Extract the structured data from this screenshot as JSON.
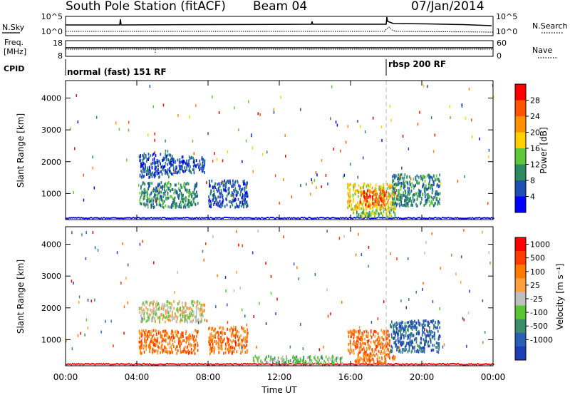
{
  "header": {
    "title": "South Pole Station (fitACF)",
    "beam": "Beam 04",
    "date": "07/Jan/2014"
  },
  "top_panels": {
    "nsky_label": "N.Sky",
    "nsky_ticks": [
      "10^5",
      "10^0"
    ],
    "nsearch_label": "N.Search",
    "nsearch_ticks": [
      "10^5",
      "10^0"
    ],
    "freq_label": "Freq.",
    "freq_unit": "[MHz]",
    "freq_ticks": [
      "18",
      "8"
    ],
    "nave_label": "Nave",
    "nave_ticks": [
      "60",
      "0"
    ],
    "cpid_label": "CPID",
    "cpid_modes": [
      {
        "name": "normal (fast) 151 RF",
        "start": "00:00"
      },
      {
        "name": "rbsp 200 RF",
        "start": "18:00"
      }
    ]
  },
  "chart_data": [
    {
      "type": "heatmap",
      "title": "",
      "xlabel": "",
      "ylabel": "Slant Range [km]",
      "xlim": [
        "00:00",
        "24:00"
      ],
      "ylim": [
        180,
        4550
      ],
      "x_ticks": [
        "00:00",
        "04:00",
        "08:00",
        "12:00",
        "16:00",
        "20:00",
        "00:00"
      ],
      "y_ticks": [
        1000,
        2000,
        3000,
        4000
      ],
      "colorbar": {
        "label": "Power [dB]",
        "ticks": [
          4,
          8,
          12,
          16,
          20,
          24,
          28
        ],
        "colors": [
          "#0000ff",
          "#1f4fb4",
          "#2c8a63",
          "#5fc73a",
          "#ffd000",
          "#ff9000",
          "#ff5500",
          "#ff0000"
        ]
      },
      "regions": [
        {
          "t0": 4.1,
          "t1": 6.0,
          "r0": 1500,
          "r1": 2250,
          "level": 1
        },
        {
          "t0": 6.0,
          "t1": 7.8,
          "r0": 1650,
          "r1": 2150,
          "level": 1
        },
        {
          "t0": 4.1,
          "t1": 7.4,
          "r0": 560,
          "r1": 1350,
          "level": 2
        },
        {
          "t0": 8.0,
          "t1": 10.2,
          "r0": 560,
          "r1": 1400,
          "level": 1
        },
        {
          "t0": 15.8,
          "t1": 18.5,
          "r0": 500,
          "r1": 1300,
          "level": 4
        },
        {
          "t0": 16.5,
          "t1": 18.0,
          "r0": 600,
          "r1": 1100,
          "level": 6
        },
        {
          "t0": 18.3,
          "t1": 21.0,
          "r0": 600,
          "r1": 1600,
          "level": 2
        },
        {
          "t0": 16.0,
          "t1": 18.5,
          "r0": 250,
          "r1": 520,
          "level": 3
        }
      ]
    },
    {
      "type": "heatmap",
      "title": "",
      "xlabel": "Time UT",
      "ylabel": "Slant Range [km]",
      "xlim": [
        "00:00",
        "24:00"
      ],
      "ylim": [
        180,
        4550
      ],
      "x_ticks": [
        "00:00",
        "04:00",
        "08:00",
        "12:00",
        "16:00",
        "20:00",
        "00:00"
      ],
      "y_ticks": [
        1000,
        2000,
        3000,
        4000
      ],
      "colorbar": {
        "label": "Velocity [m s⁻¹]",
        "ticks": [
          "1000",
          "500",
          "100",
          "25",
          "-25",
          "-100",
          "-500",
          "-1000"
        ],
        "colors": [
          "#1f3db4",
          "#2a5fb8",
          "#3a8f6a",
          "#59c533",
          "#bfbfbf",
          "#ffa040",
          "#ff7a00",
          "#ff3b00",
          "#ff0000"
        ]
      },
      "regions": [
        {
          "t0": 4.1,
          "t1": 7.8,
          "r0": 1550,
          "r1": 2200,
          "level": 4
        },
        {
          "t0": 4.1,
          "t1": 7.4,
          "r0": 560,
          "r1": 1300,
          "level": 6
        },
        {
          "t0": 8.0,
          "t1": 10.2,
          "r0": 560,
          "r1": 1400,
          "level": 6
        },
        {
          "t0": 15.8,
          "t1": 18.2,
          "r0": 500,
          "r1": 1300,
          "level": 6
        },
        {
          "t0": 16.2,
          "t1": 18.5,
          "r0": 250,
          "r1": 520,
          "level": 6
        },
        {
          "t0": 18.2,
          "t1": 21.0,
          "r0": 600,
          "r1": 1600,
          "level": 1
        },
        {
          "t0": 10.5,
          "t1": 15.5,
          "r0": 250,
          "r1": 480,
          "level": 3
        }
      ]
    }
  ]
}
